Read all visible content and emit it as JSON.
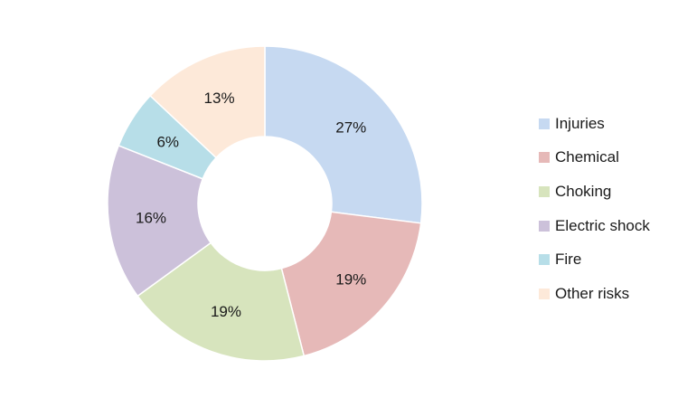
{
  "chart_data": {
    "type": "pie",
    "donut": true,
    "title": "",
    "legend_position": "right",
    "categories": [
      "Injuries",
      "Chemical",
      "Choking",
      "Electric shock",
      "Fire",
      "Other risks"
    ],
    "values": [
      27,
      19,
      19,
      16,
      6,
      13
    ],
    "value_labels": [
      "27%",
      "19%",
      "19%",
      "16%",
      "6%",
      "13%"
    ],
    "colors": [
      "#c6d9f1",
      "#e6b9b8",
      "#d7e4bd",
      "#ccc1da",
      "#b7dee8",
      "#fde9d9"
    ]
  }
}
